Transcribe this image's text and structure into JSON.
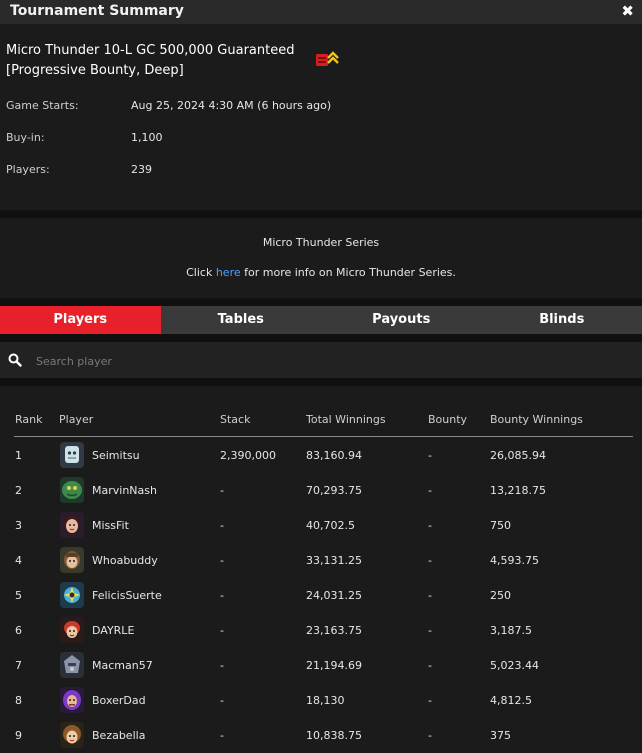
{
  "window": {
    "title": "Tournament Summary",
    "close_glyph": "✖"
  },
  "tournament": {
    "name_line1": "Micro Thunder 10-L GC 500,000 Guaranteed",
    "name_line2": "[Progressive Bounty, Deep]",
    "badge_icon": "progressive-bounty-icon",
    "details": [
      {
        "label": "Game Starts:",
        "value": "Aug 25, 2024 4:30 AM (6 hours ago)"
      },
      {
        "label": "Buy-in:",
        "value": "1,100"
      },
      {
        "label": "Players:",
        "value": "239"
      }
    ]
  },
  "series": {
    "title": "Micro Thunder Series",
    "prefix": "Click ",
    "link": "here",
    "suffix": " for more info on Micro Thunder Series."
  },
  "tabs": [
    {
      "label": "Players",
      "active": true
    },
    {
      "label": "Tables",
      "active": false
    },
    {
      "label": "Payouts",
      "active": false
    },
    {
      "label": "Blinds",
      "active": false
    }
  ],
  "search": {
    "placeholder": "Search player",
    "value": "",
    "icon": "search-icon"
  },
  "table": {
    "headers": [
      "Rank",
      "Player",
      "Stack",
      "Total Winnings",
      "Bounty",
      "Bounty Winnings"
    ],
    "rows": [
      {
        "rank": "1",
        "player": "Seimitsu",
        "stack": "2,390,000",
        "total": "83,160.94",
        "bounty": "-",
        "bounty_winnings": "26,085.94"
      },
      {
        "rank": "2",
        "player": "MarvinNash",
        "stack": "-",
        "total": "70,293.75",
        "bounty": "-",
        "bounty_winnings": "13,218.75"
      },
      {
        "rank": "3",
        "player": "MissFit",
        "stack": "-",
        "total": "40,702.5",
        "bounty": "-",
        "bounty_winnings": "750"
      },
      {
        "rank": "4",
        "player": "Whoabuddy",
        "stack": "-",
        "total": "33,131.25",
        "bounty": "-",
        "bounty_winnings": "4,593.75"
      },
      {
        "rank": "5",
        "player": "FelicisSuerte",
        "stack": "-",
        "total": "24,031.25",
        "bounty": "-",
        "bounty_winnings": "250"
      },
      {
        "rank": "6",
        "player": "DAYRLE",
        "stack": "-",
        "total": "23,163.75",
        "bounty": "-",
        "bounty_winnings": "3,187.5"
      },
      {
        "rank": "7",
        "player": "Macman57",
        "stack": "-",
        "total": "21,194.69",
        "bounty": "-",
        "bounty_winnings": "5,023.44"
      },
      {
        "rank": "8",
        "player": "BoxerDad",
        "stack": "-",
        "total": "18,130",
        "bounty": "-",
        "bounty_winnings": "4,812.5"
      },
      {
        "rank": "9",
        "player": "Bezabella",
        "stack": "-",
        "total": "10,838.75",
        "bounty": "-",
        "bounty_winnings": "375"
      }
    ]
  },
  "colors": {
    "accent": "#e8202a",
    "link": "#4aa3ff",
    "background": "#1b1b1b",
    "titlebar": "#2a2a2a",
    "tab_bar": "#3a3a3a"
  }
}
